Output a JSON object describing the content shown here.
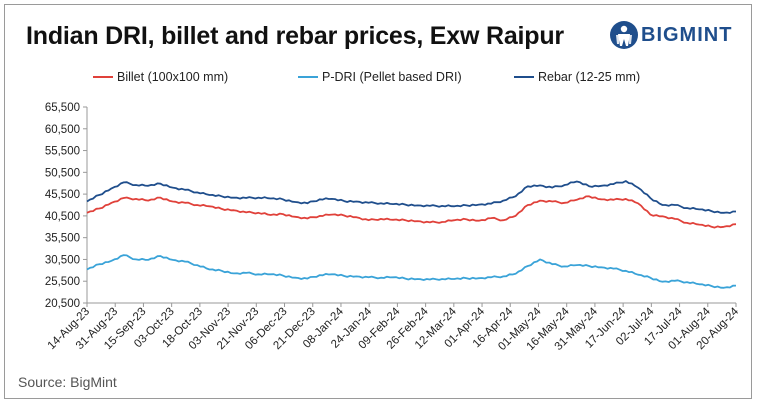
{
  "header": {
    "title": "Indian DRI, billet and rebar prices, Exw Raipur",
    "logo_text": "BIGMINT"
  },
  "footer": {
    "source": "Source: BigMint"
  },
  "colors": {
    "billet": "#e0413a",
    "pdri": "#3aa3d8",
    "rebar": "#1f4e8c",
    "axis": "#999999"
  },
  "chart_data": {
    "type": "line",
    "title": "Indian DRI, billet and rebar prices, Exw Raipur",
    "xlabel": "",
    "ylabel": "",
    "ylim": [
      20500,
      65500
    ],
    "yticks": [
      "65,500",
      "60,500",
      "55,500",
      "50,500",
      "45,500",
      "40,500",
      "35,500",
      "30,500",
      "25,500",
      "20,500"
    ],
    "x_labels": [
      "14-Aug-23",
      "31-Aug-23",
      "15-Sep-23",
      "03-Oct-23",
      "18-Oct-23",
      "03-Nov-23",
      "21-Nov-23",
      "06-Dec-23",
      "21-Dec-23",
      "08-Jan-24",
      "24-Jan-24",
      "09-Feb-24",
      "26-Feb-24",
      "12-Mar-24",
      "01-Apr-24",
      "16-Apr-24",
      "01-May-24",
      "16-May-24",
      "31-May-24",
      "17-Jun-24",
      "02-Jul-24",
      "17-Jul-24",
      "01-Aug-24",
      "20-Aug-24"
    ],
    "grid": false,
    "legend": "top",
    "series": [
      {
        "name": "Billet (100x100 mm)",
        "values": [
          41200,
          42200,
          43500,
          44600,
          44400,
          44000,
          44700,
          43800,
          43500,
          43000,
          42700,
          42100,
          41800,
          41300,
          41200,
          40700,
          40900,
          40300,
          39900,
          40500,
          40800,
          40600,
          40200,
          39500,
          39800,
          39600,
          39500,
          39300,
          39000,
          39100,
          39500,
          39700,
          39400,
          40000,
          39500,
          40500,
          43000,
          44000,
          43800,
          43500,
          44200,
          45000,
          44300,
          44200,
          44400,
          43400,
          40800,
          40400,
          39800,
          38900,
          38500,
          38000,
          38000,
          38600
        ]
      },
      {
        "name": "P-DRI (Pellet based DRI)",
        "values": [
          28200,
          29400,
          30200,
          31500,
          30500,
          30400,
          31300,
          30400,
          30000,
          29200,
          28200,
          27900,
          27300,
          27400,
          27100,
          27100,
          26800,
          26300,
          26100,
          26900,
          27100,
          26700,
          26600,
          26400,
          26300,
          26400,
          26100,
          26000,
          25900,
          26000,
          26000,
          26200,
          26200,
          26400,
          26600,
          27200,
          29000,
          30500,
          29400,
          28900,
          29200,
          29000,
          28700,
          28400,
          27900,
          27000,
          26300,
          25400,
          25600,
          25300,
          24800,
          24400,
          24000,
          24500
        ]
      },
      {
        "name": "Rebar (12-25 mm)",
        "values": [
          43800,
          45300,
          46800,
          48200,
          47600,
          47400,
          47900,
          47000,
          46500,
          45900,
          45300,
          45000,
          44700,
          44600,
          44700,
          44500,
          44300,
          43700,
          43400,
          44300,
          44400,
          43900,
          43800,
          43500,
          43400,
          43200,
          43100,
          42900,
          42800,
          42800,
          42700,
          42900,
          43100,
          43300,
          44000,
          45000,
          47300,
          47500,
          47000,
          47600,
          48400,
          47300,
          47400,
          47800,
          48500,
          47000,
          44600,
          43000,
          43000,
          42300,
          42000,
          41600,
          41200,
          41500
        ]
      }
    ]
  }
}
